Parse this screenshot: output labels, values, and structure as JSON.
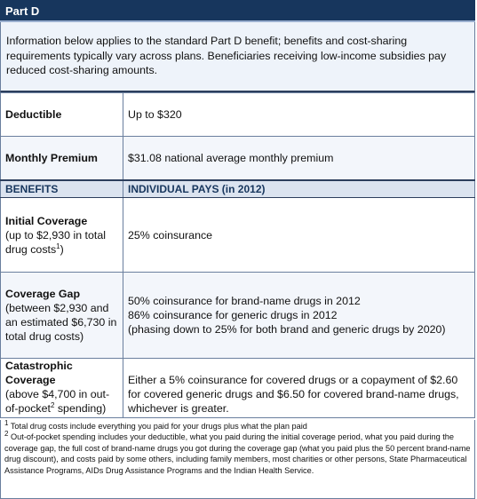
{
  "header": {
    "title": "Part D"
  },
  "intro": {
    "text": "Information below applies to the standard Part D benefit; benefits and cost-sharing requirements typically vary across plans.  Beneficiaries receiving low-income subsidies pay reduced cost-sharing amounts."
  },
  "rows": {
    "deductible": {
      "label": "Deductible",
      "value": "Up to $320"
    },
    "premium": {
      "label": "Monthly Premium",
      "value": "$31.08 national average monthly premium"
    }
  },
  "table_header": {
    "col1": "BENEFITS",
    "col2": "INDIVIDUAL PAYS (in 2012)"
  },
  "benefits": {
    "initial": {
      "label": "Initial Coverage",
      "sub": "(up to $2,930 in total drug costs",
      "sub_sup": "1",
      "sub_end": ")",
      "value": "25% coinsurance"
    },
    "gap": {
      "label": "Coverage Gap",
      "sub": "(between $2,930 and an estimated $6,730 in total drug costs)",
      "line1": "50% coinsurance for brand-name drugs in 2012",
      "line2": "86% coinsurance for generic drugs in 2012",
      "line3": "(phasing down to 25% for both brand and generic drugs by 2020)"
    },
    "catastrophic": {
      "label": "Catastrophic Coverage",
      "sub": "(above $4,700 in out-of-pocket",
      "sub_sup": "2",
      "sub_end": " spending)",
      "value": "Either a 5% coinsurance for covered drugs or a copayment of $2.60 for covered generic drugs and $6.50 for covered brand-name drugs, whichever is greater."
    }
  },
  "footnotes": {
    "fn1_mark": "1",
    "fn1": " Total drug costs include everything you paid for your drugs plus what the plan paid",
    "fn2_mark": "2",
    "fn2": " Out-of-pocket spending includes your deductible, what you paid during the initial coverage period, what you paid during the coverage gap, the full cost of brand-name drugs you got during the coverage gap (what you paid plus the 50 percent brand-name drug discount), and costs paid by some others, including family members, most charities or other persons, State Pharmaceutical Assistance  Programs, AIDs Drug Assistance Programs and the Indian Health Service."
  }
}
